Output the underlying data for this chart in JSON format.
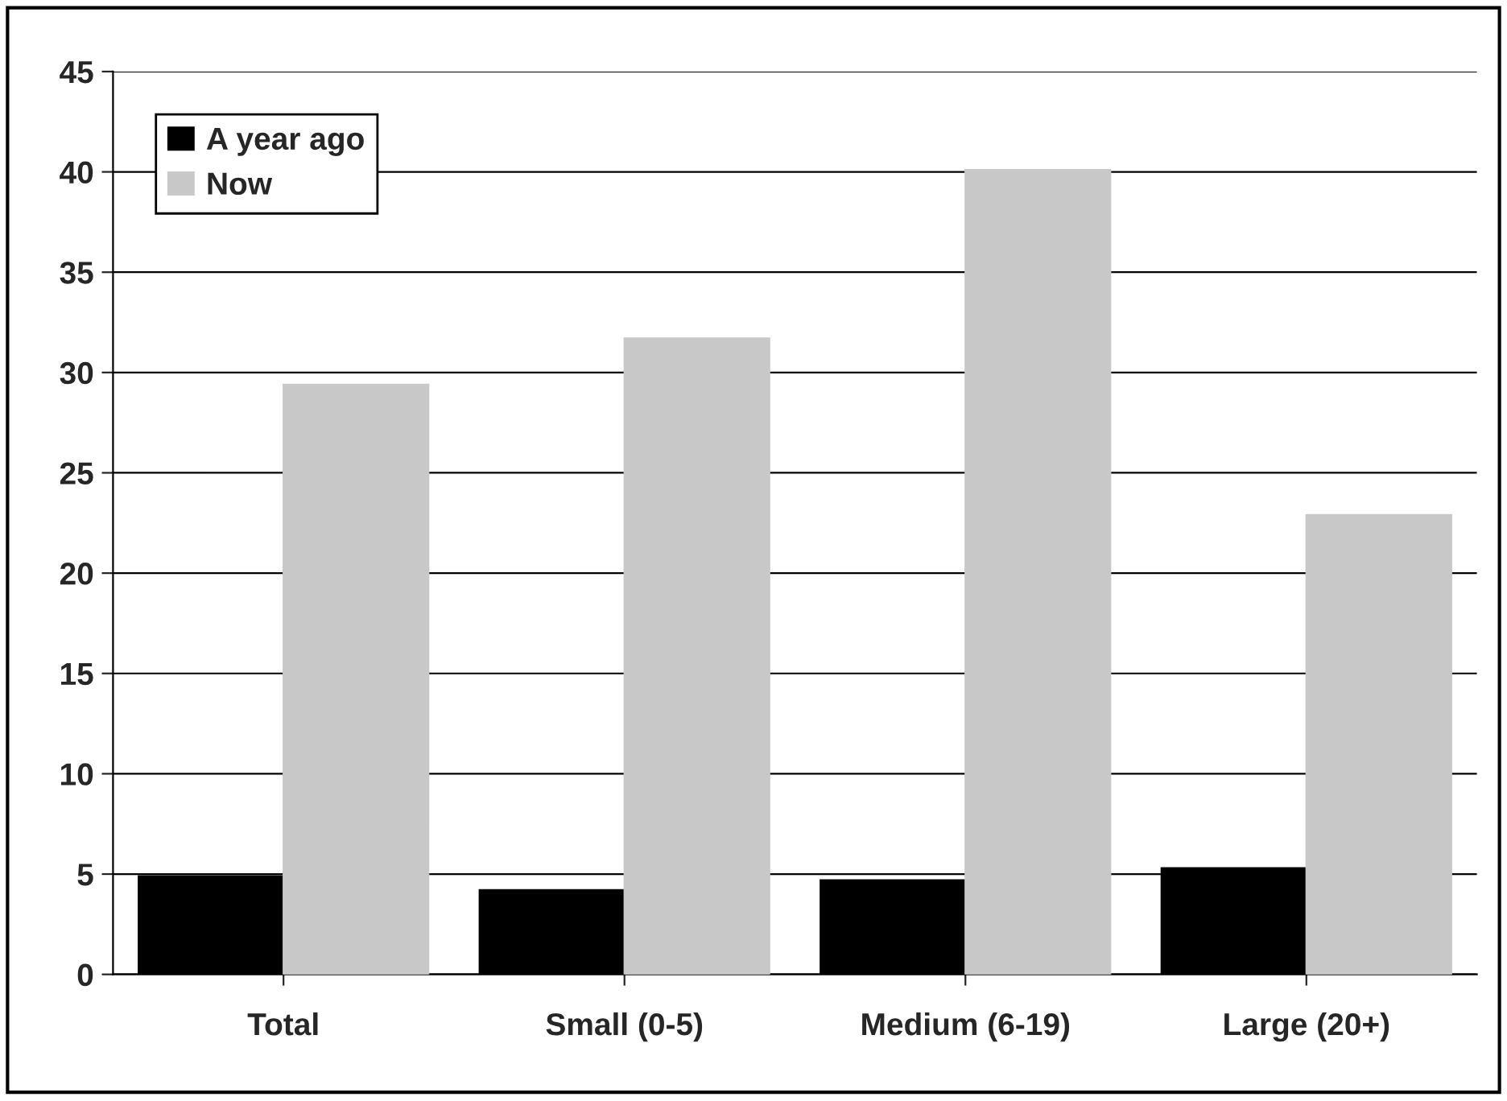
{
  "chart_data": {
    "type": "bar",
    "categories": [
      "Total",
      "Small (0-5)",
      "Medium (6-19)",
      "Large (20+)"
    ],
    "series": [
      {
        "name": "A year ago",
        "color": "#000000",
        "values": [
          4.9,
          4.2,
          4.7,
          5.3
        ]
      },
      {
        "name": "Now",
        "color": "#c8c8c8",
        "values": [
          29.4,
          31.7,
          40.1,
          22.9
        ]
      }
    ],
    "ylim": [
      0,
      45
    ],
    "yticks": [
      0,
      5,
      10,
      15,
      20,
      25,
      30,
      35,
      40,
      45
    ],
    "grid": "y",
    "legend": "top left"
  }
}
